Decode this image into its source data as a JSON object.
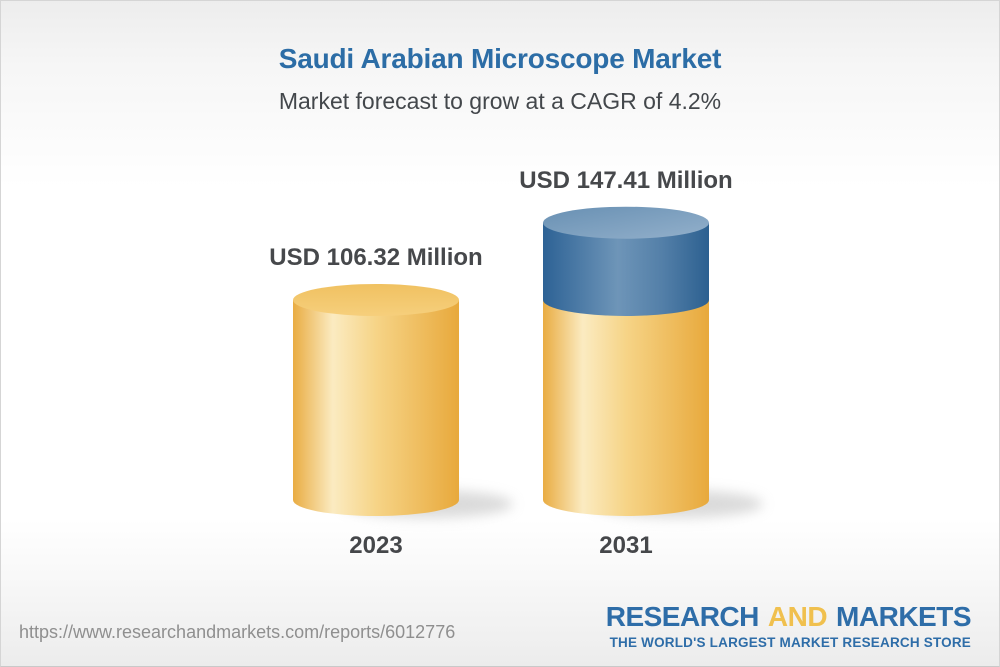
{
  "header": {
    "title": "Saudi Arabian Microscope Market",
    "subtitle": "Market forecast to grow at a CAGR of 4.2%"
  },
  "chart_data": {
    "type": "bar",
    "bar_style": "3d-cylinder",
    "categories": [
      "2023",
      "2031"
    ],
    "values": [
      106.32,
      147.41
    ],
    "value_labels": [
      "USD 106.32 Million",
      "USD 147.41 Million"
    ],
    "unit": "USD Million",
    "cagr_percent": 4.2,
    "baseline": 0,
    "grid": "off",
    "legend": "none",
    "colors": {
      "base_segment_gold": "#f2c76e",
      "growth_segment_blue": "#4577a4",
      "label_text": "#46484b",
      "title_blue": "#2c6da6"
    }
  },
  "footer": {
    "url": "https://www.researchandmarkets.com/reports/6012776",
    "logo": {
      "research": "RESEARCH",
      "and": "AND",
      "markets": "MARKETS",
      "tagline": "THE WORLD'S LARGEST MARKET RESEARCH STORE",
      "brand_blue": "#2e6da8",
      "brand_gold": "#f0c04e"
    }
  }
}
